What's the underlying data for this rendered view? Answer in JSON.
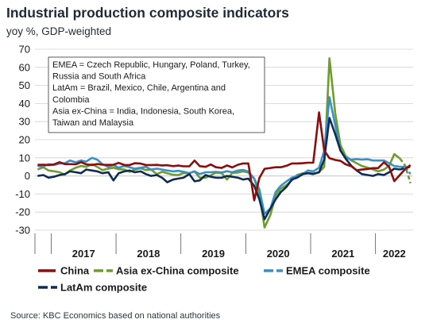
{
  "header": {
    "title": "Industrial production composite indicators",
    "subtitle": "yoy %, GDP-weighted"
  },
  "source": "Source: KBC Economics based on national authorities",
  "note": [
    "EMEA = Czech Republic, Hungary, Poland, Turkey,",
    "Russia and South Africa",
    "LatAm = Brazil, Mexico, Chile, Argentina and",
    "Colombia",
    "Asia ex-China = India, Indonesia, South Korea,",
    "Taiwan and Malaysia"
  ],
  "colors": {
    "China": "#8b0d0d",
    "Asia ex-China composite": "#6e9c2e",
    "EMEA composite": "#3b8fc4",
    "LatAm composite": "#0f2b52",
    "grid": "#d0d0d0"
  },
  "chart_data": {
    "type": "line",
    "title": "Industrial production composite indicators",
    "ylabel": "yoy %, GDP-weighted",
    "ylim": [
      -30,
      70
    ],
    "yticks": [
      -30,
      -20,
      -10,
      0,
      10,
      20,
      30,
      40,
      50,
      60,
      70
    ],
    "x_labels": [
      "2017",
      "2018",
      "2019",
      "2020",
      "2021",
      "2022"
    ],
    "x_start": 2016.75,
    "x_end": 2022.58,
    "grid": "horizontal",
    "legend_position": "bottom",
    "series": [
      {
        "name": "China",
        "style": "solid",
        "dashed_from": null,
        "points": [
          [
            2016.79,
            6.1
          ],
          [
            2016.88,
            6.2
          ],
          [
            2016.96,
            6.0
          ],
          [
            2017.04,
            6.3
          ],
          [
            2017.13,
            7.6
          ],
          [
            2017.21,
            6.5
          ],
          [
            2017.29,
            6.5
          ],
          [
            2017.38,
            6.4
          ],
          [
            2017.46,
            7.6
          ],
          [
            2017.54,
            6.4
          ],
          [
            2017.63,
            6.0
          ],
          [
            2017.71,
            6.6
          ],
          [
            2017.79,
            6.2
          ],
          [
            2017.88,
            6.1
          ],
          [
            2017.96,
            6.2
          ],
          [
            2018.04,
            7.2
          ],
          [
            2018.13,
            6.0
          ],
          [
            2018.21,
            6.0
          ],
          [
            2018.29,
            7.0
          ],
          [
            2018.38,
            6.8
          ],
          [
            2018.46,
            6.0
          ],
          [
            2018.54,
            6.0
          ],
          [
            2018.63,
            6.1
          ],
          [
            2018.71,
            5.8
          ],
          [
            2018.79,
            5.9
          ],
          [
            2018.88,
            5.4
          ],
          [
            2018.96,
            5.7
          ],
          [
            2019.04,
            5.3
          ],
          [
            2019.13,
            5.3
          ],
          [
            2019.21,
            8.5
          ],
          [
            2019.29,
            5.4
          ],
          [
            2019.38,
            5.0
          ],
          [
            2019.46,
            6.3
          ],
          [
            2019.54,
            4.8
          ],
          [
            2019.63,
            4.4
          ],
          [
            2019.71,
            5.8
          ],
          [
            2019.79,
            4.7
          ],
          [
            2019.88,
            6.2
          ],
          [
            2019.96,
            6.9
          ],
          [
            2020.04,
            6.9
          ],
          [
            2020.13,
            -13.5
          ],
          [
            2020.21,
            -1.1
          ],
          [
            2020.29,
            3.9
          ],
          [
            2020.38,
            4.4
          ],
          [
            2020.46,
            4.8
          ],
          [
            2020.54,
            4.8
          ],
          [
            2020.63,
            5.6
          ],
          [
            2020.71,
            6.9
          ],
          [
            2020.79,
            6.9
          ],
          [
            2020.88,
            7.0
          ],
          [
            2020.96,
            7.3
          ],
          [
            2021.04,
            7.3
          ],
          [
            2021.13,
            35.1
          ],
          [
            2021.21,
            14.1
          ],
          [
            2021.29,
            9.8
          ],
          [
            2021.38,
            8.8
          ],
          [
            2021.46,
            8.3
          ],
          [
            2021.54,
            6.4
          ],
          [
            2021.63,
            5.3
          ],
          [
            2021.71,
            3.1
          ],
          [
            2021.79,
            3.5
          ],
          [
            2021.88,
            3.8
          ],
          [
            2021.96,
            4.3
          ],
          [
            2022.04,
            4.3
          ],
          [
            2022.13,
            7.5
          ],
          [
            2022.21,
            5.0
          ],
          [
            2022.29,
            -2.9
          ],
          [
            2022.38,
            0.7
          ],
          [
            2022.46,
            3.9
          ],
          [
            2022.54,
            6.0
          ]
        ]
      },
      {
        "name": "Asia ex-China composite",
        "style": "solid",
        "dashed_from": 2022.38,
        "points": [
          [
            2016.79,
            3.5
          ],
          [
            2016.88,
            4.8
          ],
          [
            2016.96,
            3.0
          ],
          [
            2017.04,
            2.6
          ],
          [
            2017.13,
            2.0
          ],
          [
            2017.21,
            0.7
          ],
          [
            2017.29,
            3.0
          ],
          [
            2017.38,
            4.5
          ],
          [
            2017.46,
            5.5
          ],
          [
            2017.54,
            5.0
          ],
          [
            2017.63,
            6.5
          ],
          [
            2017.71,
            5.0
          ],
          [
            2017.79,
            3.2
          ],
          [
            2017.88,
            4.0
          ],
          [
            2017.96,
            4.5
          ],
          [
            2018.04,
            3.7
          ],
          [
            2018.13,
            3.5
          ],
          [
            2018.21,
            2.3
          ],
          [
            2018.29,
            3.4
          ],
          [
            2018.38,
            4.2
          ],
          [
            2018.46,
            3.2
          ],
          [
            2018.54,
            3.5
          ],
          [
            2018.63,
            1.0
          ],
          [
            2018.71,
            2.3
          ],
          [
            2018.79,
            1.5
          ],
          [
            2018.88,
            0.6
          ],
          [
            2018.96,
            0.5
          ],
          [
            2019.04,
            1.6
          ],
          [
            2019.13,
            1.5
          ],
          [
            2019.21,
            2.5
          ],
          [
            2019.29,
            -1.0
          ],
          [
            2019.38,
            -1.0
          ],
          [
            2019.46,
            0.3
          ],
          [
            2019.54,
            1.8
          ],
          [
            2019.63,
            1.5
          ],
          [
            2019.71,
            -2.0
          ],
          [
            2019.79,
            1.6
          ],
          [
            2019.88,
            1.9
          ],
          [
            2019.96,
            2.5
          ],
          [
            2020.04,
            1.9
          ],
          [
            2020.13,
            -1.6
          ],
          [
            2020.21,
            -10.0
          ],
          [
            2020.29,
            -28.5
          ],
          [
            2020.38,
            -21.5
          ],
          [
            2020.46,
            -11.0
          ],
          [
            2020.54,
            -7.0
          ],
          [
            2020.63,
            -5.0
          ],
          [
            2020.71,
            -2.5
          ],
          [
            2020.79,
            0.5
          ],
          [
            2020.88,
            1.5
          ],
          [
            2020.96,
            1.6
          ],
          [
            2021.04,
            1.3
          ],
          [
            2021.13,
            2.0
          ],
          [
            2021.21,
            5.0
          ],
          [
            2021.29,
            65.0
          ],
          [
            2021.38,
            34.5
          ],
          [
            2021.46,
            17.0
          ],
          [
            2021.54,
            11.0
          ],
          [
            2021.63,
            8.5
          ],
          [
            2021.71,
            7.0
          ],
          [
            2021.79,
            5.5
          ],
          [
            2021.88,
            4.5
          ],
          [
            2021.96,
            3.6
          ],
          [
            2022.04,
            2.5
          ],
          [
            2022.13,
            3.5
          ],
          [
            2022.21,
            5.5
          ],
          [
            2022.29,
            12.0
          ],
          [
            2022.38,
            9.5
          ],
          [
            2022.46,
            5.5
          ],
          [
            2022.54,
            -4.0
          ]
        ]
      },
      {
        "name": "EMEA composite",
        "style": "solid",
        "dashed_from": 2022.46,
        "points": [
          [
            2016.79,
            5.5
          ],
          [
            2016.88,
            5.2
          ],
          [
            2016.96,
            6.5
          ],
          [
            2017.04,
            6.0
          ],
          [
            2017.13,
            6.8
          ],
          [
            2017.21,
            7.0
          ],
          [
            2017.29,
            8.5
          ],
          [
            2017.38,
            7.5
          ],
          [
            2017.46,
            8.5
          ],
          [
            2017.54,
            7.9
          ],
          [
            2017.63,
            10.0
          ],
          [
            2017.71,
            9.0
          ],
          [
            2017.79,
            6.5
          ],
          [
            2017.88,
            5.0
          ],
          [
            2017.96,
            6.0
          ],
          [
            2018.04,
            4.5
          ],
          [
            2018.13,
            5.5
          ],
          [
            2018.21,
            4.8
          ],
          [
            2018.29,
            4.0
          ],
          [
            2018.38,
            4.5
          ],
          [
            2018.46,
            5.0
          ],
          [
            2018.54,
            3.5
          ],
          [
            2018.63,
            4.0
          ],
          [
            2018.71,
            3.5
          ],
          [
            2018.79,
            3.0
          ],
          [
            2018.88,
            2.5
          ],
          [
            2018.96,
            2.8
          ],
          [
            2019.04,
            2.3
          ],
          [
            2019.13,
            1.5
          ],
          [
            2019.21,
            2.5
          ],
          [
            2019.29,
            1.0
          ],
          [
            2019.38,
            2.0
          ],
          [
            2019.46,
            2.0
          ],
          [
            2019.54,
            2.2
          ],
          [
            2019.63,
            1.9
          ],
          [
            2019.71,
            2.6
          ],
          [
            2019.79,
            2.0
          ],
          [
            2019.88,
            3.0
          ],
          [
            2019.96,
            3.3
          ],
          [
            2020.04,
            2.4
          ],
          [
            2020.13,
            -1.5
          ],
          [
            2020.21,
            -7.5
          ],
          [
            2020.29,
            -21.0
          ],
          [
            2020.38,
            -18.0
          ],
          [
            2020.46,
            -9.0
          ],
          [
            2020.54,
            -5.5
          ],
          [
            2020.63,
            -3.0
          ],
          [
            2020.71,
            -1.0
          ],
          [
            2020.79,
            0.0
          ],
          [
            2020.88,
            1.0
          ],
          [
            2020.96,
            3.0
          ],
          [
            2021.04,
            2.5
          ],
          [
            2021.13,
            4.5
          ],
          [
            2021.21,
            14.0
          ],
          [
            2021.29,
            43.5
          ],
          [
            2021.38,
            28.0
          ],
          [
            2021.46,
            14.0
          ],
          [
            2021.54,
            10.0
          ],
          [
            2021.63,
            9.0
          ],
          [
            2021.71,
            9.3
          ],
          [
            2021.79,
            9.0
          ],
          [
            2021.88,
            9.2
          ],
          [
            2021.96,
            8.5
          ],
          [
            2022.04,
            8.5
          ],
          [
            2022.13,
            8.5
          ],
          [
            2022.21,
            7.0
          ],
          [
            2022.29,
            5.5
          ],
          [
            2022.38,
            5.0
          ],
          [
            2022.46,
            5.0
          ],
          [
            2022.54,
            1.0
          ]
        ]
      },
      {
        "name": "LatAm composite",
        "style": "solid",
        "dashed_from": 2022.38,
        "points": [
          [
            2016.79,
            0.0
          ],
          [
            2016.88,
            0.5
          ],
          [
            2016.96,
            -1.0
          ],
          [
            2017.04,
            -0.5
          ],
          [
            2017.13,
            0.5
          ],
          [
            2017.21,
            1.0
          ],
          [
            2017.29,
            2.5
          ],
          [
            2017.38,
            2.0
          ],
          [
            2017.46,
            1.5
          ],
          [
            2017.54,
            3.5
          ],
          [
            2017.63,
            3.0
          ],
          [
            2017.71,
            2.5
          ],
          [
            2017.79,
            1.5
          ],
          [
            2017.88,
            2.0
          ],
          [
            2017.96,
            -2.5
          ],
          [
            2018.04,
            1.5
          ],
          [
            2018.13,
            2.5
          ],
          [
            2018.21,
            3.0
          ],
          [
            2018.29,
            2.0
          ],
          [
            2018.38,
            2.5
          ],
          [
            2018.46,
            1.0
          ],
          [
            2018.54,
            0.0
          ],
          [
            2018.63,
            0.5
          ],
          [
            2018.71,
            -1.0
          ],
          [
            2018.79,
            -3.5
          ],
          [
            2018.88,
            -2.0
          ],
          [
            2018.96,
            -1.5
          ],
          [
            2019.04,
            -1.0
          ],
          [
            2019.13,
            1.0
          ],
          [
            2019.21,
            -3.0
          ],
          [
            2019.29,
            -2.5
          ],
          [
            2019.38,
            0.5
          ],
          [
            2019.46,
            -0.5
          ],
          [
            2019.54,
            -1.0
          ],
          [
            2019.63,
            -1.0
          ],
          [
            2019.71,
            0.0
          ],
          [
            2019.79,
            -0.5
          ],
          [
            2019.88,
            -1.0
          ],
          [
            2019.96,
            -2.0
          ],
          [
            2020.04,
            -1.5
          ],
          [
            2020.13,
            -5.5
          ],
          [
            2020.21,
            -13.0
          ],
          [
            2020.29,
            -24.0
          ],
          [
            2020.38,
            -18.0
          ],
          [
            2020.46,
            -13.0
          ],
          [
            2020.54,
            -9.0
          ],
          [
            2020.63,
            -6.0
          ],
          [
            2020.71,
            -2.0
          ],
          [
            2020.79,
            -1.0
          ],
          [
            2020.88,
            1.0
          ],
          [
            2020.96,
            1.5
          ],
          [
            2021.04,
            1.0
          ],
          [
            2021.13,
            2.0
          ],
          [
            2021.21,
            9.0
          ],
          [
            2021.29,
            32.0
          ],
          [
            2021.38,
            23.0
          ],
          [
            2021.46,
            14.0
          ],
          [
            2021.54,
            9.5
          ],
          [
            2021.63,
            5.5
          ],
          [
            2021.71,
            3.0
          ],
          [
            2021.79,
            1.0
          ],
          [
            2021.88,
            0.5
          ],
          [
            2021.96,
            0.0
          ],
          [
            2022.04,
            1.0
          ],
          [
            2022.13,
            0.5
          ],
          [
            2022.21,
            2.0
          ],
          [
            2022.29,
            4.0
          ],
          [
            2022.38,
            3.5
          ],
          [
            2022.46,
            4.5
          ],
          [
            2022.54,
            5.0
          ]
        ]
      }
    ]
  }
}
